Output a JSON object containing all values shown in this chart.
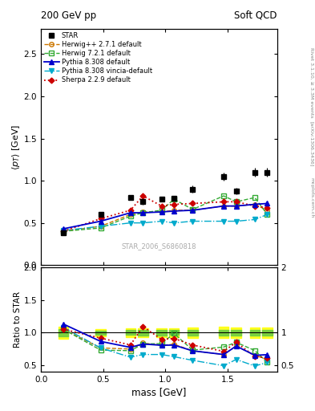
{
  "title_left": "200 GeV pp",
  "title_right": "Soft QCD",
  "ylabel_main": "$\\langle p_T \\rangle$ [GeV]",
  "ylabel_ratio": "Ratio to STAR",
  "xlabel": "mass [GeV]",
  "watermark": "STAR_2006_S6860818",
  "rivet_label": "Rivet 3.1.10, ≥ 3.3M events",
  "arxiv_label": "[arXiv:1306.3436]",
  "mcplots_label": "mcplots.cern.ch",
  "star_x": [
    0.18,
    0.48,
    0.72,
    0.82,
    0.97,
    1.07,
    1.22,
    1.47,
    1.57,
    1.72,
    1.82
  ],
  "star_y": [
    0.38,
    0.6,
    0.8,
    0.75,
    0.78,
    0.79,
    0.9,
    1.05,
    0.88,
    1.1,
    1.1
  ],
  "star_yerr": [
    0.02,
    0.02,
    0.03,
    0.03,
    0.03,
    0.03,
    0.04,
    0.05,
    0.04,
    0.05,
    0.05
  ],
  "herwig1_x": [
    0.18,
    0.48,
    0.72,
    0.82,
    0.97,
    1.07,
    1.22,
    1.47,
    1.57,
    1.72,
    1.82
  ],
  "herwig1_y": [
    0.4,
    0.46,
    0.6,
    0.63,
    0.63,
    0.65,
    0.65,
    0.7,
    0.7,
    0.72,
    0.65
  ],
  "herwig1_color": "#cc7700",
  "herwig1_label": "Herwig++ 2.7.1 default",
  "herwig2_x": [
    0.18,
    0.48,
    0.72,
    0.82,
    0.97,
    1.07,
    1.22,
    1.47,
    1.57,
    1.72,
    1.82
  ],
  "herwig2_y": [
    0.4,
    0.44,
    0.58,
    0.62,
    0.65,
    0.78,
    0.66,
    0.82,
    0.75,
    0.8,
    0.6
  ],
  "herwig2_color": "#33aa33",
  "herwig2_label": "Herwig 7.2.1 default",
  "pythia1_x": [
    0.18,
    0.48,
    0.72,
    0.82,
    0.97,
    1.07,
    1.22,
    1.47,
    1.57,
    1.72,
    1.82
  ],
  "pythia1_y": [
    0.43,
    0.52,
    0.62,
    0.62,
    0.63,
    0.64,
    0.65,
    0.7,
    0.7,
    0.72,
    0.73
  ],
  "pythia1_color": "#0000cc",
  "pythia1_label": "Pythia 8.308 default",
  "pythia2_x": [
    0.18,
    0.48,
    0.72,
    0.82,
    0.97,
    1.07,
    1.22,
    1.47,
    1.57,
    1.72,
    1.82
  ],
  "pythia2_y": [
    0.41,
    0.46,
    0.5,
    0.5,
    0.52,
    0.5,
    0.52,
    0.52,
    0.52,
    0.54,
    0.6
  ],
  "pythia2_color": "#00aacc",
  "pythia2_label": "Pythia 8.308 vincia-default",
  "sherpa_x": [
    0.18,
    0.48,
    0.72,
    0.82,
    0.97,
    1.07,
    1.22,
    1.47,
    1.57,
    1.72,
    1.82
  ],
  "sherpa_y": [
    0.4,
    0.55,
    0.65,
    0.82,
    0.7,
    0.72,
    0.73,
    0.75,
    0.75,
    0.7,
    0.68
  ],
  "sherpa_color": "#cc0000",
  "sherpa_label": "Sherpa 2.2.9 default",
  "ylim_main": [
    0.0,
    2.8
  ],
  "ylim_ratio": [
    0.4,
    2.0
  ],
  "xlim": [
    0.0,
    1.9
  ],
  "ratio_band_x": [
    0.18,
    0.48,
    0.72,
    0.82,
    0.97,
    1.07,
    1.22,
    1.47,
    1.57,
    1.72,
    1.82
  ],
  "ratio_band_half_w": [
    0.04,
    0.04,
    0.04,
    0.04,
    0.04,
    0.04,
    0.04,
    0.04,
    0.04,
    0.04,
    0.04
  ]
}
